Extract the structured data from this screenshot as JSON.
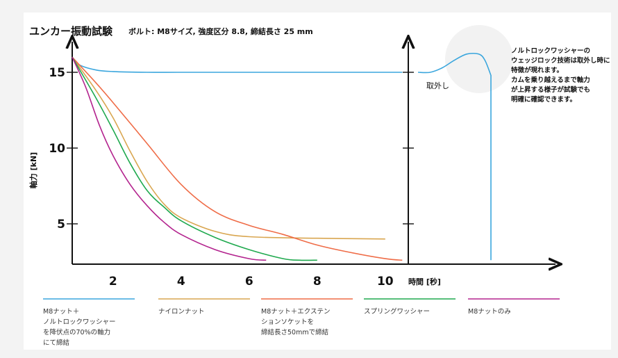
{
  "chart_data": {
    "type": "line",
    "title": "ユンカー振動試験",
    "subtitle": "ボルト: M8サイズ, 強度区分 8.8, 締結長さ 25 mm",
    "ylabel": "軸力 [kN]",
    "xlabel": "時間 [秒]",
    "yticks": [
      5,
      10,
      15
    ],
    "xticks": [
      2,
      4,
      6,
      8,
      10
    ],
    "xlim": [
      0.8,
      10.5
    ],
    "ylim": [
      2.6,
      17.5
    ],
    "annotation": {
      "lines": [
        "ノルトロックワッシャーの",
        "ウェッジロック技術は取外し時に",
        "特徴が現れます。",
        "カムを乗り越えるまで軸力",
        "が上昇する様子が試験でも",
        "明確に確認できます。"
      ]
    },
    "removal_label": "取外し",
    "removal_curve": {
      "x": [
        0,
        0.1,
        0.2,
        0.3,
        0.4,
        0.5,
        0.55,
        0.6,
        0.6,
        0.6
      ],
      "y": [
        15,
        15,
        15.3,
        15.8,
        16.2,
        16.2,
        15.8,
        14.8,
        8,
        2.6
      ]
    },
    "series": [
      {
        "name": "M8ナット＋\nノルトロックワッシャー\nを降伏点の70%の軸力\nにて締結",
        "color": "#3aa6dd",
        "x": [
          0.8,
          1.0,
          1.5,
          2.0,
          3.0,
          4.0,
          6.0,
          8.0,
          10.0,
          10.5
        ],
        "y": [
          16.0,
          15.5,
          15.15,
          15.05,
          15.0,
          15.0,
          15.0,
          15.0,
          15.0,
          15.0
        ]
      },
      {
        "name": "ナイロンナット",
        "color": "#d9a650",
        "x": [
          0.8,
          1.5,
          2.0,
          2.5,
          3.0,
          3.5,
          4.0,
          5.0,
          6.0,
          8.0,
          10.0
        ],
        "y": [
          16.0,
          13.8,
          12.0,
          9.8,
          7.8,
          6.3,
          5.4,
          4.5,
          4.15,
          4.05,
          4.0
        ]
      },
      {
        "name": "M8ナット＋エクステン\nションソケットを\n締結長さ50mmで締結",
        "color": "#ef6c47",
        "x": [
          0.8,
          1.5,
          2.0,
          3.0,
          4.0,
          5.0,
          6.0,
          7.0,
          8.0,
          9.0,
          10.0,
          10.5
        ],
        "y": [
          16.0,
          14.3,
          13.0,
          10.3,
          7.6,
          5.8,
          4.9,
          4.3,
          3.6,
          3.1,
          2.7,
          2.6
        ]
      },
      {
        "name": "スプリングワッシャー",
        "color": "#1fa94e",
        "x": [
          0.8,
          1.5,
          2.0,
          2.5,
          3.0,
          3.5,
          4.0,
          5.0,
          6.0,
          7.0,
          7.5,
          8.0
        ],
        "y": [
          16.0,
          13.3,
          11.2,
          9.0,
          7.2,
          6.1,
          5.2,
          4.1,
          3.3,
          2.7,
          2.6,
          2.6
        ]
      },
      {
        "name": "M8ナットのみ",
        "color": "#b3238e",
        "x": [
          0.8,
          1.2,
          1.6,
          2.0,
          2.5,
          3.0,
          3.5,
          4.0,
          5.0,
          6.0,
          6.5
        ],
        "y": [
          16.0,
          14.0,
          11.5,
          9.5,
          7.6,
          6.2,
          5.1,
          4.3,
          3.3,
          2.7,
          2.6
        ]
      }
    ]
  }
}
